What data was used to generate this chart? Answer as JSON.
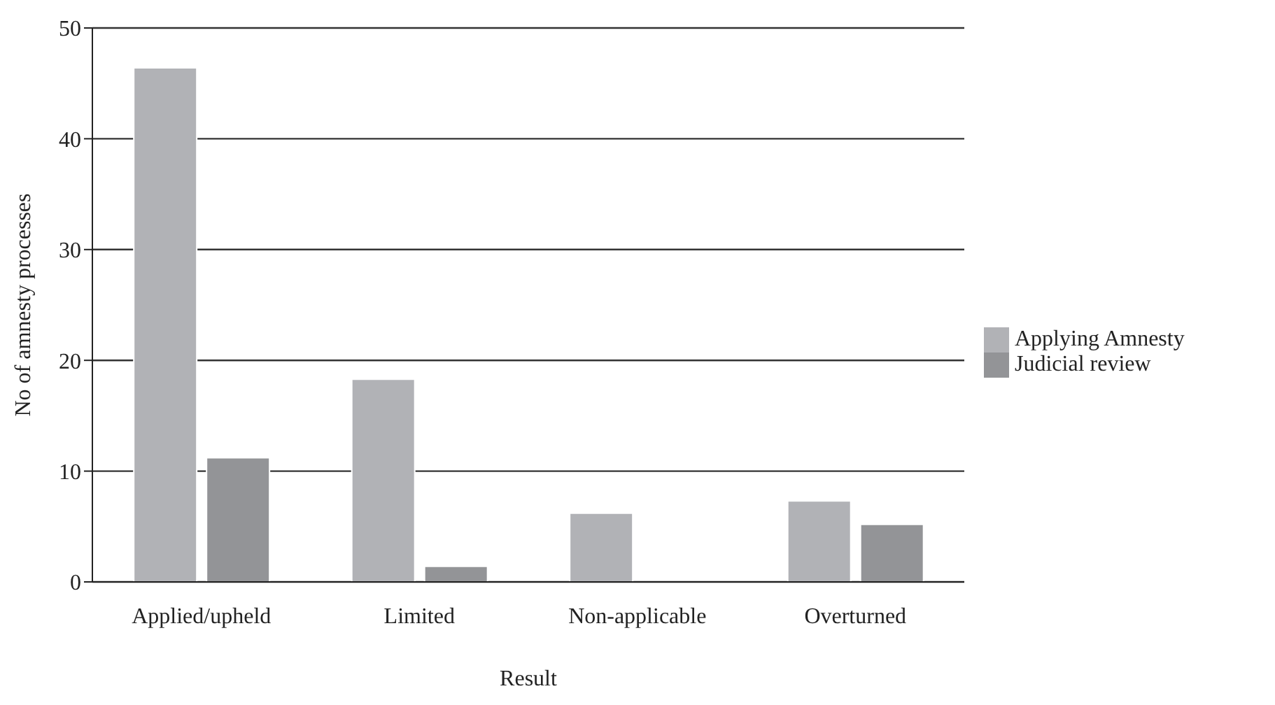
{
  "chart_data": {
    "type": "bar",
    "xlabel": "Result",
    "ylabel": "No of amnesty processes",
    "categories": [
      "Applied/upheld",
      "Limited",
      "Non-applicable",
      "Overturned"
    ],
    "series": [
      {
        "name": "Applying Amnesty",
        "color": "#b1b2b6",
        "values": [
          46.4,
          18.3,
          6.2,
          7.3
        ]
      },
      {
        "name": "Judicial review",
        "color": "#939497",
        "values": [
          11.2,
          1.4,
          0,
          5.2
        ]
      }
    ],
    "ylim": [
      0,
      50
    ],
    "yticks": [
      0,
      10,
      20,
      30,
      40,
      50
    ],
    "grid": "y",
    "legend": "right"
  }
}
